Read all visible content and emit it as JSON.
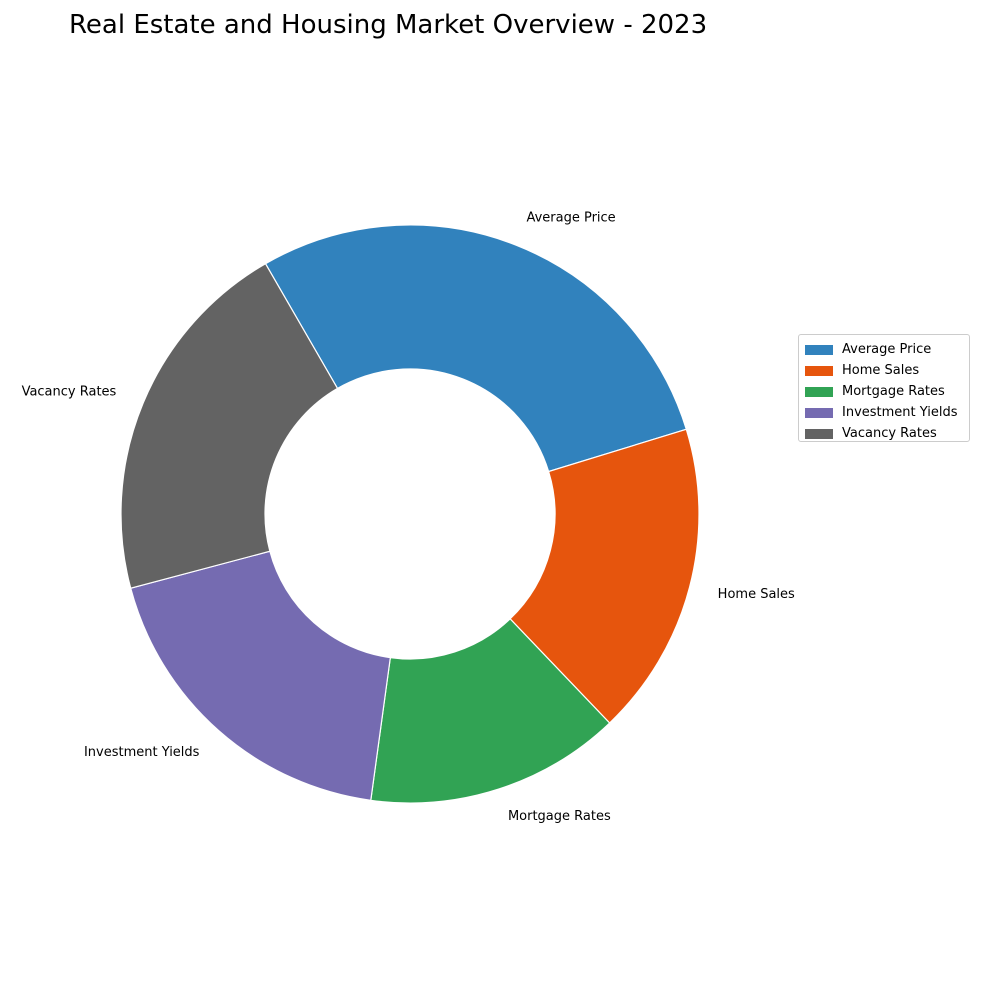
{
  "chart_data": {
    "type": "pie",
    "title": "Real Estate and Housing Market Overview - 2023",
    "donut": true,
    "categories": [
      "Average Price",
      "Home Sales",
      "Mortgage Rates",
      "Investment Yields",
      "Vacancy Rates"
    ],
    "values": [
      28.6,
      17.6,
      14.3,
      18.7,
      20.8
    ],
    "colors": [
      "#3182bd",
      "#e6550d",
      "#31a354",
      "#756bb1",
      "#636363"
    ],
    "start_angle_deg": 120,
    "direction": "clockwise",
    "legend": {
      "placement": "right",
      "entries": [
        "Average Price",
        "Home Sales",
        "Mortgage Rates",
        "Investment Yields",
        "Vacancy Rates"
      ]
    }
  }
}
